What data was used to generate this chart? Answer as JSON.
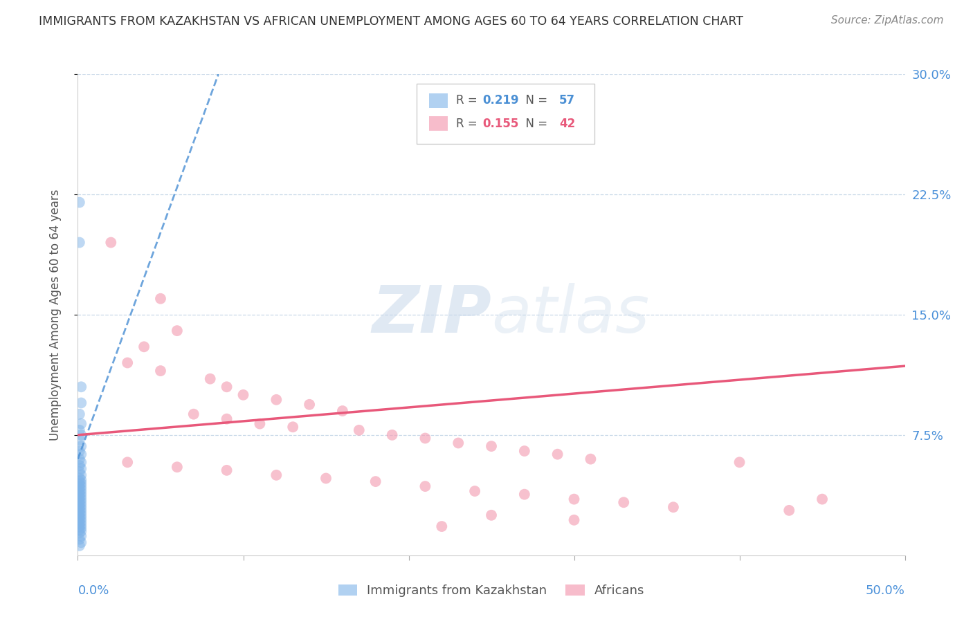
{
  "title": "IMMIGRANTS FROM KAZAKHSTAN VS AFRICAN UNEMPLOYMENT AMONG AGES 60 TO 64 YEARS CORRELATION CHART",
  "source": "Source: ZipAtlas.com",
  "ylabel": "Unemployment Among Ages 60 to 64 years",
  "xlim": [
    0,
    0.5
  ],
  "ylim": [
    0,
    0.3
  ],
  "yticks": [
    0.075,
    0.15,
    0.225,
    0.3
  ],
  "ytick_labels": [
    "7.5%",
    "15.0%",
    "22.5%",
    "30.0%"
  ],
  "blue_R": 0.219,
  "blue_N": 57,
  "pink_R": 0.155,
  "pink_N": 42,
  "blue_color": "#7eb3e8",
  "pink_color": "#f4a0b5",
  "blue_line_color": "#4a8fd4",
  "pink_line_color": "#e8587a",
  "legend_label_blue": "Immigrants from Kazakhstan",
  "legend_label_pink": "Africans",
  "blue_scatter": [
    [
      0.001,
      0.22
    ],
    [
      0.001,
      0.195
    ],
    [
      0.002,
      0.105
    ],
    [
      0.002,
      0.095
    ],
    [
      0.001,
      0.088
    ],
    [
      0.002,
      0.082
    ],
    [
      0.001,
      0.078
    ],
    [
      0.002,
      0.075
    ],
    [
      0.001,
      0.072
    ],
    [
      0.002,
      0.068
    ],
    [
      0.001,
      0.065
    ],
    [
      0.002,
      0.063
    ],
    [
      0.001,
      0.06
    ],
    [
      0.002,
      0.058
    ],
    [
      0.001,
      0.056
    ],
    [
      0.002,
      0.054
    ],
    [
      0.001,
      0.052
    ],
    [
      0.002,
      0.05
    ],
    [
      0.001,
      0.048
    ],
    [
      0.002,
      0.047
    ],
    [
      0.001,
      0.046
    ],
    [
      0.002,
      0.045
    ],
    [
      0.001,
      0.044
    ],
    [
      0.002,
      0.043
    ],
    [
      0.001,
      0.042
    ],
    [
      0.002,
      0.041
    ],
    [
      0.001,
      0.04
    ],
    [
      0.002,
      0.039
    ],
    [
      0.001,
      0.038
    ],
    [
      0.002,
      0.037
    ],
    [
      0.001,
      0.036
    ],
    [
      0.002,
      0.035
    ],
    [
      0.001,
      0.034
    ],
    [
      0.002,
      0.033
    ],
    [
      0.001,
      0.032
    ],
    [
      0.002,
      0.031
    ],
    [
      0.001,
      0.03
    ],
    [
      0.002,
      0.029
    ],
    [
      0.001,
      0.028
    ],
    [
      0.002,
      0.027
    ],
    [
      0.001,
      0.026
    ],
    [
      0.002,
      0.025
    ],
    [
      0.001,
      0.024
    ],
    [
      0.002,
      0.023
    ],
    [
      0.001,
      0.022
    ],
    [
      0.002,
      0.021
    ],
    [
      0.001,
      0.02
    ],
    [
      0.002,
      0.019
    ],
    [
      0.001,
      0.018
    ],
    [
      0.002,
      0.017
    ],
    [
      0.001,
      0.016
    ],
    [
      0.002,
      0.015
    ],
    [
      0.001,
      0.014
    ],
    [
      0.002,
      0.012
    ],
    [
      0.001,
      0.01
    ],
    [
      0.002,
      0.008
    ],
    [
      0.001,
      0.006
    ]
  ],
  "pink_scatter": [
    [
      0.02,
      0.195
    ],
    [
      0.05,
      0.16
    ],
    [
      0.06,
      0.14
    ],
    [
      0.04,
      0.13
    ],
    [
      0.03,
      0.12
    ],
    [
      0.05,
      0.115
    ],
    [
      0.08,
      0.11
    ],
    [
      0.09,
      0.105
    ],
    [
      0.1,
      0.1
    ],
    [
      0.12,
      0.097
    ],
    [
      0.14,
      0.094
    ],
    [
      0.16,
      0.09
    ],
    [
      0.07,
      0.088
    ],
    [
      0.09,
      0.085
    ],
    [
      0.11,
      0.082
    ],
    [
      0.13,
      0.08
    ],
    [
      0.17,
      0.078
    ],
    [
      0.19,
      0.075
    ],
    [
      0.21,
      0.073
    ],
    [
      0.23,
      0.07
    ],
    [
      0.25,
      0.068
    ],
    [
      0.27,
      0.065
    ],
    [
      0.29,
      0.063
    ],
    [
      0.31,
      0.06
    ],
    [
      0.03,
      0.058
    ],
    [
      0.06,
      0.055
    ],
    [
      0.09,
      0.053
    ],
    [
      0.12,
      0.05
    ],
    [
      0.15,
      0.048
    ],
    [
      0.18,
      0.046
    ],
    [
      0.21,
      0.043
    ],
    [
      0.24,
      0.04
    ],
    [
      0.27,
      0.038
    ],
    [
      0.3,
      0.035
    ],
    [
      0.33,
      0.033
    ],
    [
      0.36,
      0.03
    ],
    [
      0.25,
      0.025
    ],
    [
      0.3,
      0.022
    ],
    [
      0.22,
      0.018
    ],
    [
      0.4,
      0.058
    ],
    [
      0.45,
      0.035
    ],
    [
      0.43,
      0.028
    ]
  ],
  "blue_line_x": [
    0.0,
    0.085
  ],
  "blue_line_y": [
    0.06,
    0.3
  ],
  "pink_line_x": [
    0.0,
    0.5
  ],
  "pink_line_y": [
    0.075,
    0.118
  ],
  "watermark_zip": "ZIP",
  "watermark_atlas": "atlas",
  "background_color": "#ffffff",
  "grid_color": "#c8d8e8",
  "title_color": "#333333",
  "axis_label_color": "#4a90d9",
  "right_axis_color": "#4a90d9",
  "legend_text_color": "#555555",
  "legend_value_color_blue": "#4a8fd4",
  "legend_value_color_pink": "#e8587a"
}
